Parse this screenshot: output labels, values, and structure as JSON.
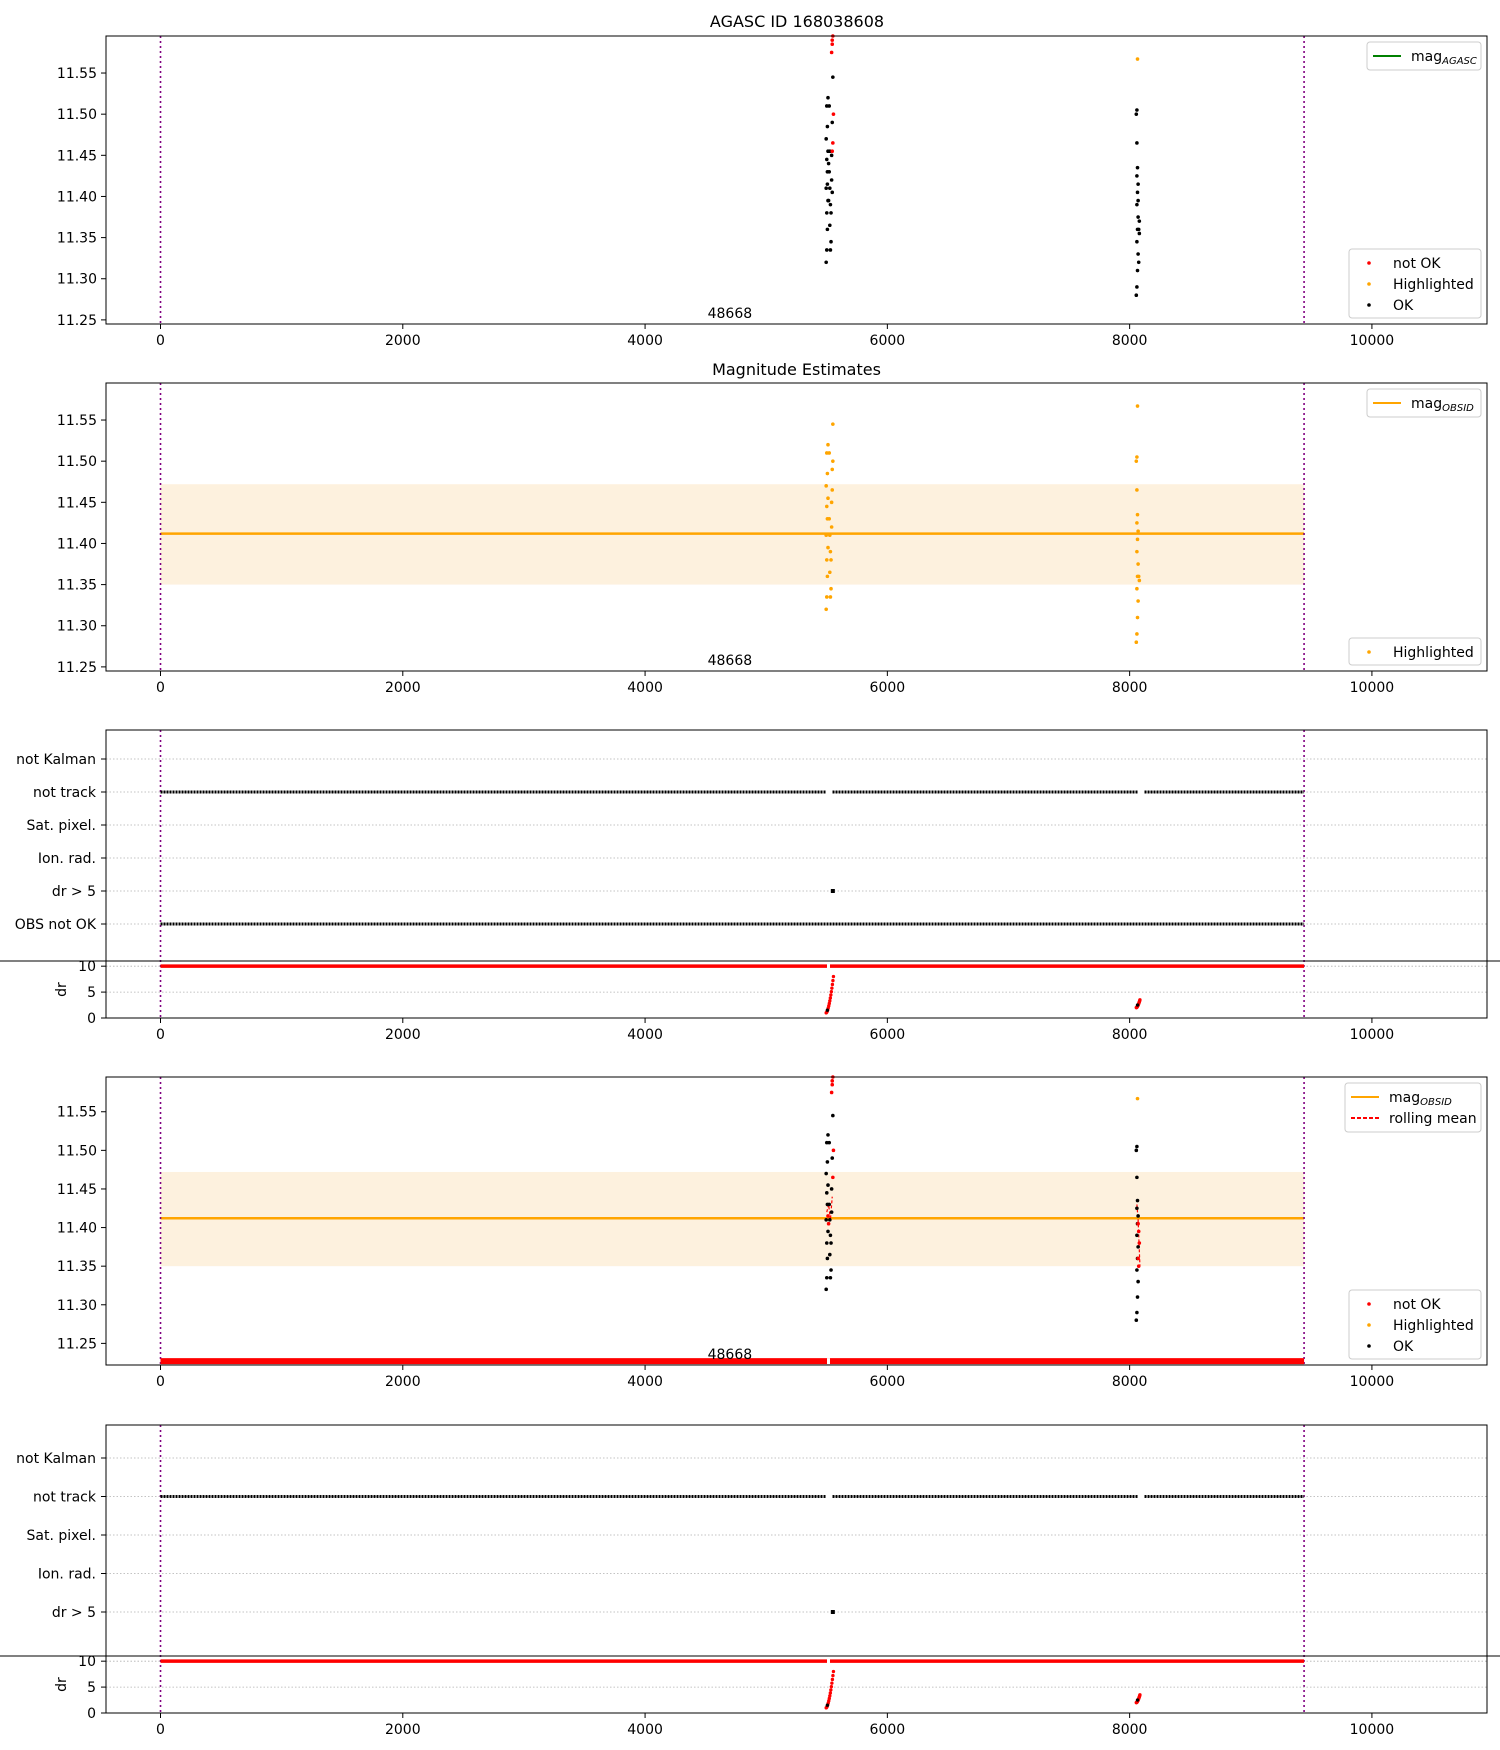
{
  "figure": {
    "title": "AGASC ID 168038608",
    "obsid_label": "48668"
  },
  "colors": {
    "ok": "#000000",
    "not_ok": "#ff0000",
    "highlighted": "#ffa500",
    "agasc_line": "#008000",
    "obsid_line": "#ffa500",
    "obsid_band": "#fdf1de",
    "interval_line": "#800080",
    "grid": "#b0b0b0"
  },
  "chart_data": [
    {
      "type": "scatter",
      "title": "",
      "xlim": [
        -450,
        10950
      ],
      "ylim": [
        11.245,
        11.595
      ],
      "xticks": [
        0,
        2000,
        4000,
        6000,
        8000,
        10000
      ],
      "yticks": [
        11.25,
        11.3,
        11.35,
        11.4,
        11.45,
        11.5,
        11.55
      ],
      "ytick_labels": [
        "11.25",
        "11.30",
        "11.35",
        "11.40",
        "11.45",
        "11.50",
        "11.55"
      ],
      "vlines": [
        0,
        9440
      ],
      "legend_lines": [
        {
          "label": "mag",
          "sub": "AGASC",
          "color": "#008000",
          "style": "solid"
        }
      ],
      "legend_points": [
        {
          "label": "not OK",
          "color": "#ff0000"
        },
        {
          "label": "Highlighted",
          "color": "#ffa500"
        },
        {
          "label": "OK",
          "color": "#000000"
        }
      ],
      "series": [
        {
          "name": "OK",
          "color": "#000000",
          "points": [
            [
              5495,
              11.32
            ],
            [
              5500,
              11.335
            ],
            [
              5505,
              11.36
            ],
            [
              5500,
              11.38
            ],
            [
              5510,
              11.395
            ],
            [
              5495,
              11.41
            ],
            [
              5505,
              11.43
            ],
            [
              5500,
              11.445
            ],
            [
              5510,
              11.455
            ],
            [
              5495,
              11.47
            ],
            [
              5505,
              11.485
            ],
            [
              5500,
              11.51
            ],
            [
              5510,
              11.52
            ],
            [
              5520,
              11.43
            ],
            [
              5525,
              11.41
            ],
            [
              5530,
              11.39
            ],
            [
              5535,
              11.38
            ],
            [
              5525,
              11.365
            ],
            [
              5535,
              11.345
            ],
            [
              5530,
              11.335
            ],
            [
              5540,
              11.42
            ],
            [
              5540,
              11.45
            ],
            [
              5545,
              11.49
            ],
            [
              5550,
              11.545
            ],
            [
              5520,
              11.51
            ],
            [
              5515,
              11.395
            ],
            [
              5515,
              11.44
            ],
            [
              5525,
              11.455
            ],
            [
              5545,
              11.405
            ],
            [
              5505,
              11.415
            ],
            [
              8055,
              11.28
            ],
            [
              8060,
              11.29
            ],
            [
              8065,
              11.31
            ],
            [
              8070,
              11.33
            ],
            [
              8060,
              11.345
            ],
            [
              8065,
              11.36
            ],
            [
              8070,
              11.375
            ],
            [
              8060,
              11.39
            ],
            [
              8065,
              11.405
            ],
            [
              8070,
              11.415
            ],
            [
              8060,
              11.425
            ],
            [
              8065,
              11.435
            ],
            [
              8060,
              11.465
            ],
            [
              8055,
              11.5
            ],
            [
              8060,
              11.505
            ],
            [
              8075,
              11.36
            ],
            [
              8080,
              11.355
            ],
            [
              8075,
              11.32
            ],
            [
              8070,
              11.395
            ],
            [
              8080,
              11.37
            ]
          ]
        },
        {
          "name": "not OK",
          "color": "#ff0000",
          "points": [
            [
              5540,
              11.575
            ],
            [
              5545,
              11.585
            ],
            [
              5545,
              11.59
            ],
            [
              5550,
              11.595
            ],
            [
              5555,
              11.5
            ],
            [
              5550,
              11.465
            ],
            [
              5545,
              11.455
            ]
          ]
        },
        {
          "name": "Highlighted",
          "color": "#ffa500",
          "points": [
            [
              8065,
              11.567
            ]
          ]
        }
      ]
    },
    {
      "type": "scatter",
      "title": "Magnitude Estimates",
      "xlim": [
        -450,
        10950
      ],
      "ylim": [
        11.245,
        11.595
      ],
      "xticks": [
        0,
        2000,
        4000,
        6000,
        8000,
        10000
      ],
      "yticks": [
        11.25,
        11.3,
        11.35,
        11.4,
        11.45,
        11.5,
        11.55
      ],
      "ytick_labels": [
        "11.25",
        "11.30",
        "11.35",
        "11.40",
        "11.45",
        "11.50",
        "11.55"
      ],
      "vlines": [
        0,
        9440
      ],
      "mag_obsid": 11.412,
      "mag_obsid_band": [
        11.35,
        11.472
      ],
      "legend_lines": [
        {
          "label": "mag",
          "sub": "OBSID",
          "color": "#ffa500",
          "style": "solid"
        }
      ],
      "legend_points": [
        {
          "label": "Highlighted",
          "color": "#ffa500"
        }
      ],
      "series": [
        {
          "name": "Highlighted",
          "color": "#ffa500",
          "points": [
            [
              5495,
              11.32
            ],
            [
              5500,
              11.335
            ],
            [
              5505,
              11.36
            ],
            [
              5500,
              11.38
            ],
            [
              5510,
              11.395
            ],
            [
              5495,
              11.41
            ],
            [
              5505,
              11.43
            ],
            [
              5500,
              11.445
            ],
            [
              5510,
              11.455
            ],
            [
              5495,
              11.47
            ],
            [
              5505,
              11.485
            ],
            [
              5500,
              11.51
            ],
            [
              5510,
              11.52
            ],
            [
              5520,
              11.43
            ],
            [
              5525,
              11.41
            ],
            [
              5530,
              11.39
            ],
            [
              5535,
              11.38
            ],
            [
              5525,
              11.365
            ],
            [
              5535,
              11.345
            ],
            [
              5530,
              11.335
            ],
            [
              5540,
              11.42
            ],
            [
              5540,
              11.45
            ],
            [
              5545,
              11.49
            ],
            [
              5550,
              11.545
            ],
            [
              5520,
              11.51
            ],
            [
              5545,
              11.465
            ],
            [
              5550,
              11.5
            ],
            [
              8055,
              11.28
            ],
            [
              8060,
              11.29
            ],
            [
              8065,
              11.31
            ],
            [
              8070,
              11.33
            ],
            [
              8060,
              11.345
            ],
            [
              8065,
              11.36
            ],
            [
              8070,
              11.375
            ],
            [
              8060,
              11.39
            ],
            [
              8065,
              11.405
            ],
            [
              8070,
              11.415
            ],
            [
              8060,
              11.425
            ],
            [
              8065,
              11.435
            ],
            [
              8060,
              11.465
            ],
            [
              8055,
              11.5
            ],
            [
              8060,
              11.505
            ],
            [
              8075,
              11.36
            ],
            [
              8080,
              11.355
            ],
            [
              8065,
              11.567
            ]
          ]
        }
      ]
    },
    {
      "type": "scatter",
      "title": "",
      "xlim": [
        -450,
        10950
      ],
      "yticks": [
        "OBS not OK",
        "dr > 5",
        "Ion. rad.",
        "Sat. pixel.",
        "not track",
        "not Kalman"
      ],
      "vlines": [
        0,
        9440
      ],
      "flag_rows": [
        {
          "label": "not track",
          "x_range": [
            0,
            9440
          ],
          "gaps": [
            5495,
            8070
          ],
          "color": "#000000"
        },
        {
          "label": "OBS not OK",
          "x_range": [
            0,
            9440
          ],
          "gaps": [],
          "color": "#000000"
        },
        {
          "label": "dr > 5",
          "x_points": [
            5550
          ],
          "color": "#000000"
        }
      ],
      "dr": {
        "ylabel": "dr",
        "ylim": [
          0,
          11
        ],
        "yticks": [
          0,
          5,
          10
        ],
        "cap": 10,
        "cap_range": [
          0,
          9440
        ],
        "bursts": [
          [
            5495,
            5555,
            1,
            8
          ],
          [
            8055,
            8085,
            2,
            3.5
          ]
        ]
      }
    },
    {
      "type": "scatter",
      "title": "",
      "xlim": [
        -450,
        10950
      ],
      "ylim": [
        11.222,
        11.595
      ],
      "xticks": [
        0,
        2000,
        4000,
        6000,
        8000,
        10000
      ],
      "yticks": [
        11.25,
        11.3,
        11.35,
        11.4,
        11.45,
        11.5,
        11.55
      ],
      "ytick_labels": [
        "11.25",
        "11.30",
        "11.35",
        "11.40",
        "11.45",
        "11.50",
        "11.55"
      ],
      "vlines": [
        0,
        9440
      ],
      "mag_obsid": 11.412,
      "mag_obsid_band": [
        11.35,
        11.472
      ],
      "baseline_y": 11.227,
      "legend_lines": [
        {
          "label": "mag",
          "sub": "OBSID",
          "color": "#ffa500",
          "style": "solid"
        },
        {
          "label": "rolling mean",
          "sub": "",
          "color": "#ff0000",
          "style": "dashed"
        }
      ],
      "legend_points": [
        {
          "label": "not OK",
          "color": "#ff0000"
        },
        {
          "label": "Highlighted",
          "color": "#ffa500"
        },
        {
          "label": "OK",
          "color": "#000000"
        }
      ],
      "series": [
        {
          "name": "OK",
          "color": "#000000",
          "points": [
            [
              5495,
              11.32
            ],
            [
              5500,
              11.335
            ],
            [
              5505,
              11.36
            ],
            [
              5500,
              11.38
            ],
            [
              5510,
              11.395
            ],
            [
              5495,
              11.41
            ],
            [
              5505,
              11.43
            ],
            [
              5500,
              11.445
            ],
            [
              5510,
              11.455
            ],
            [
              5495,
              11.47
            ],
            [
              5505,
              11.485
            ],
            [
              5500,
              11.51
            ],
            [
              5510,
              11.52
            ],
            [
              5520,
              11.43
            ],
            [
              5525,
              11.41
            ],
            [
              5530,
              11.39
            ],
            [
              5535,
              11.38
            ],
            [
              5525,
              11.365
            ],
            [
              5535,
              11.345
            ],
            [
              5530,
              11.335
            ],
            [
              5540,
              11.42
            ],
            [
              5540,
              11.45
            ],
            [
              5545,
              11.49
            ],
            [
              5550,
              11.545
            ],
            [
              5520,
              11.51
            ],
            [
              8055,
              11.28
            ],
            [
              8060,
              11.29
            ],
            [
              8065,
              11.31
            ],
            [
              8070,
              11.33
            ],
            [
              8060,
              11.345
            ],
            [
              8065,
              11.36
            ],
            [
              8070,
              11.375
            ],
            [
              8060,
              11.39
            ],
            [
              8065,
              11.405
            ],
            [
              8070,
              11.415
            ],
            [
              8060,
              11.425
            ],
            [
              8065,
              11.435
            ],
            [
              8060,
              11.465
            ],
            [
              8055,
              11.5
            ],
            [
              8060,
              11.505
            ]
          ]
        },
        {
          "name": "not OK",
          "color": "#ff0000",
          "points": [
            [
              5540,
              11.575
            ],
            [
              5545,
              11.585
            ],
            [
              5545,
              11.59
            ],
            [
              5550,
              11.595
            ],
            [
              5555,
              11.5
            ],
            [
              5550,
              11.465
            ],
            [
              5510,
              11.415
            ],
            [
              5515,
              11.405
            ],
            [
              8070,
              11.405
            ],
            [
              8075,
              11.395
            ],
            [
              8080,
              11.38
            ],
            [
              8070,
              11.36
            ],
            [
              8075,
              11.35
            ]
          ]
        },
        {
          "name": "Highlighted",
          "color": "#ffa500",
          "points": [
            [
              8065,
              11.567
            ]
          ]
        }
      ],
      "rolling_mean": [
        {
          "points": [
            [
              5500,
              11.42
            ],
            [
              5515,
              11.43
            ],
            [
              5530,
              11.41
            ],
            [
              5545,
              11.44
            ]
          ]
        },
        {
          "points": [
            [
              8060,
              11.43
            ],
            [
              8070,
              11.41
            ],
            [
              8080,
              11.37
            ],
            [
              8085,
              11.35
            ]
          ]
        }
      ]
    },
    {
      "type": "scatter",
      "title": "",
      "xlim": [
        -450,
        10950
      ],
      "yticks": [
        "dr > 5",
        "Ion. rad.",
        "Sat. pixel.",
        "not track",
        "not Kalman"
      ],
      "vlines": [
        0,
        9440
      ],
      "flag_rows": [
        {
          "label": "not track",
          "x_range": [
            0,
            9440
          ],
          "gaps": [
            5495,
            8070
          ],
          "color": "#000000"
        },
        {
          "label": "dr > 5",
          "x_points": [
            5550
          ],
          "color": "#000000"
        }
      ],
      "dr": {
        "ylabel": "dr",
        "ylim": [
          0,
          11
        ],
        "yticks": [
          0,
          5,
          10
        ],
        "cap": 10,
        "cap_range": [
          0,
          9440
        ],
        "bursts": [
          [
            5495,
            5555,
            1,
            8
          ],
          [
            8055,
            8085,
            2,
            3.5
          ]
        ]
      }
    }
  ]
}
